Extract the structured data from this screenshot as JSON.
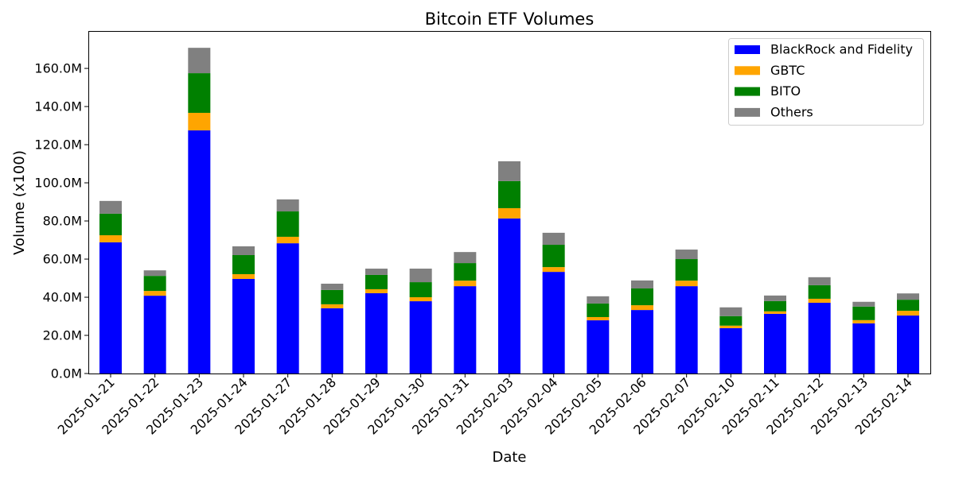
{
  "chart_data": {
    "type": "bar",
    "stacked": true,
    "title": "Bitcoin ETF Volumes",
    "xlabel": "Date",
    "ylabel": "Volume (x100)",
    "ylim": [
      0,
      179.2
    ],
    "yticks": [
      0,
      20,
      40,
      60,
      80,
      100,
      120,
      140,
      160
    ],
    "ytick_labels": [
      "0.0M",
      "20.0M",
      "40.0M",
      "60.0M",
      "80.0M",
      "100.0M",
      "120.0M",
      "140.0M",
      "160.0M"
    ],
    "grid": false,
    "legend_position": "top-right",
    "categories": [
      "2025-01-21",
      "2025-01-22",
      "2025-01-23",
      "2025-01-24",
      "2025-01-27",
      "2025-01-28",
      "2025-01-29",
      "2025-01-30",
      "2025-01-31",
      "2025-02-03",
      "2025-02-04",
      "2025-02-05",
      "2025-02-06",
      "2025-02-07",
      "2025-02-10",
      "2025-02-11",
      "2025-02-12",
      "2025-02-13",
      "2025-02-14"
    ],
    "series": [
      {
        "name": "BlackRock and Fidelity",
        "color": "#0000ff",
        "values": [
          68.8,
          40.8,
          127.5,
          49.6,
          68.3,
          34.2,
          42.1,
          37.9,
          45.8,
          81.3,
          53.3,
          27.9,
          33.3,
          45.8,
          23.8,
          31.3,
          37.1,
          26.3,
          30.4
        ]
      },
      {
        "name": "GBTC",
        "color": "#ffa500",
        "values": [
          3.7,
          2.5,
          9.2,
          2.5,
          3.4,
          2.1,
          2.1,
          2.1,
          2.9,
          5.4,
          2.5,
          1.7,
          2.5,
          2.9,
          1.3,
          1.3,
          2.1,
          1.7,
          2.5
        ]
      },
      {
        "name": "BITO",
        "color": "#008000",
        "values": [
          11.3,
          7.9,
          20.8,
          10.0,
          13.3,
          7.5,
          7.5,
          7.9,
          9.2,
          14.2,
          11.7,
          7.1,
          8.8,
          11.3,
          5.0,
          5.4,
          7.1,
          7.1,
          5.8
        ]
      },
      {
        "name": "Others",
        "color": "#808080",
        "values": [
          6.7,
          2.9,
          13.3,
          4.6,
          6.3,
          3.3,
          3.3,
          7.1,
          5.8,
          10.4,
          6.3,
          3.8,
          4.2,
          5.0,
          4.6,
          2.9,
          4.2,
          2.5,
          3.3
        ]
      }
    ]
  }
}
